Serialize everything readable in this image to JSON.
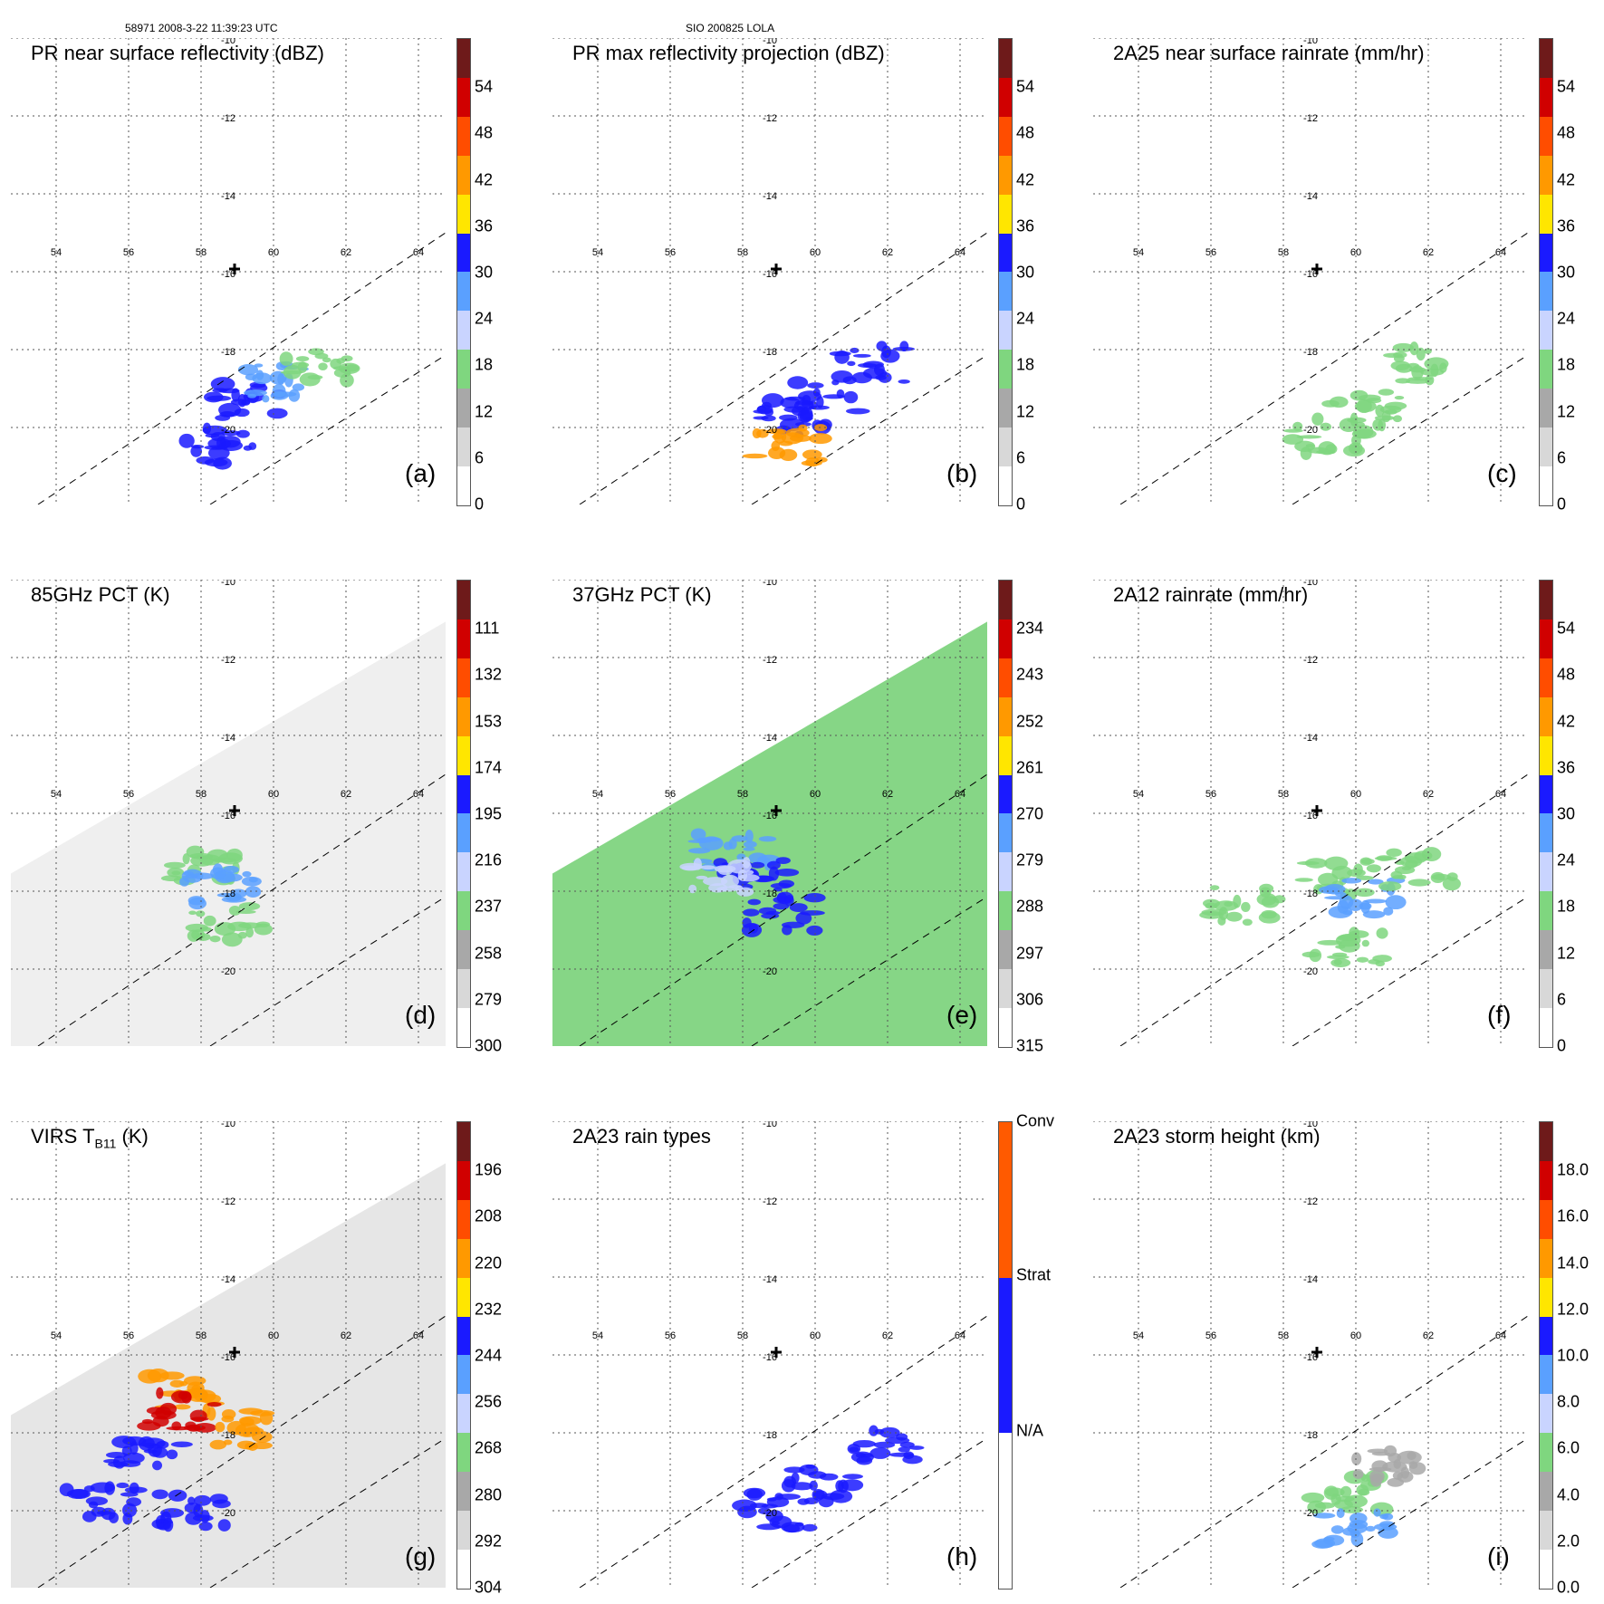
{
  "header": {
    "left": "58971 2008-3-22 11:39:23 UTC",
    "center": "SIO 200825 LOLA"
  },
  "grid": {
    "lon_labels": [
      "54",
      "56",
      "58",
      "60",
      "62",
      "64"
    ],
    "lat_labels": [
      "-10",
      "-12",
      "-14",
      "-16",
      "-18",
      "-20"
    ]
  },
  "panels": [
    {
      "title": "PR near surface reflectivity (dBZ)",
      "label": "(a)",
      "ticks": [
        "54",
        "48",
        "42",
        "36",
        "30",
        "24",
        "18",
        "12",
        "6",
        "0"
      ]
    },
    {
      "title": "PR max reflectivity projection (dBZ)",
      "label": "(b)",
      "ticks": [
        "54",
        "48",
        "42",
        "36",
        "30",
        "24",
        "18",
        "12",
        "6",
        "0"
      ]
    },
    {
      "title": "2A25 near surface rainrate (mm/hr)",
      "label": "(c)",
      "ticks": [
        "54",
        "48",
        "42",
        "36",
        "30",
        "24",
        "18",
        "12",
        "6",
        "0"
      ]
    },
    {
      "title": "85GHz PCT (K)",
      "label": "(d)",
      "ticks": [
        "111",
        "132",
        "153",
        "174",
        "195",
        "216",
        "237",
        "258",
        "279",
        "300"
      ]
    },
    {
      "title": "37GHz PCT (K)",
      "label": "(e)",
      "ticks": [
        "234",
        "243",
        "252",
        "261",
        "270",
        "279",
        "288",
        "297",
        "306",
        "315"
      ]
    },
    {
      "title": "2A12 rainrate (mm/hr)",
      "label": "(f)",
      "ticks": [
        "54",
        "48",
        "42",
        "36",
        "30",
        "24",
        "18",
        "12",
        "6",
        "0"
      ]
    },
    {
      "title": "VIRS T",
      "title_sub": "B11",
      "title_after": " (K)",
      "label": "(g)",
      "ticks": [
        "196",
        "208",
        "220",
        "232",
        "244",
        "256",
        "268",
        "280",
        "292",
        "304"
      ]
    },
    {
      "title": "2A23 rain types",
      "label": "(h)",
      "ticks": [
        "Conv",
        "Strat",
        "N/A"
      ]
    },
    {
      "title": "2A23 storm height (km)",
      "label": "(i)",
      "ticks": [
        "18.0",
        "16.0",
        "14.0",
        "12.0",
        "10.0",
        "8.0",
        "6.0",
        "4.0",
        "2.0",
        "0.0"
      ]
    }
  ],
  "colors": {
    "scale": [
      "#ffffff",
      "#d8d8d8",
      "#a8a8a8",
      "#7fd67f",
      "#c9d4ff",
      "#5aa0ff",
      "#1a1aff",
      "#ffe600",
      "#ff9900",
      "#ff4d00",
      "#d00000",
      "#6e1a1a"
    ],
    "raintype": [
      "#ffffff",
      "#1a1aff",
      "#ff5a00"
    ]
  }
}
